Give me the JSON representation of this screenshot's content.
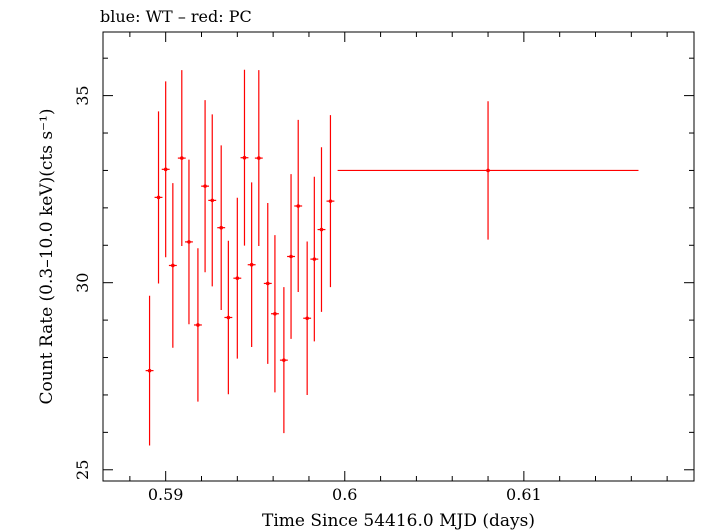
{
  "chart_data": {
    "type": "scatter",
    "title": "blue: WT – red: PC",
    "xlabel": "Time Since 54416.0 MJD (days)",
    "ylabel": "Count Rate (0.3–10.0 keV)(cts s⁻¹)",
    "xlim": [
      0.5865,
      0.6195
    ],
    "ylim": [
      24.7,
      36.7
    ],
    "grid": false,
    "x_ticks": [
      {
        "value": 0.59,
        "label": "0.59"
      },
      {
        "value": 0.6,
        "label": "0.6"
      },
      {
        "value": 0.61,
        "label": "0.61"
      }
    ],
    "y_ticks": [
      {
        "value": 25,
        "label": "25"
      },
      {
        "value": 30,
        "label": "30"
      },
      {
        "value": 35,
        "label": "35"
      }
    ],
    "series": [
      {
        "color": "#ff0000",
        "points": [
          {
            "x": 0.5891,
            "y": 27.65,
            "xerr": 0.00022,
            "yerr": 2.0
          },
          {
            "x": 0.5896,
            "y": 32.28,
            "xerr": 0.00022,
            "yerr": 2.3
          },
          {
            "x": 0.59,
            "y": 33.03,
            "xerr": 0.00022,
            "yerr": 2.35
          },
          {
            "x": 0.5904,
            "y": 30.46,
            "xerr": 0.00022,
            "yerr": 2.2
          },
          {
            "x": 0.5909,
            "y": 33.33,
            "xerr": 0.00022,
            "yerr": 2.35
          },
          {
            "x": 0.5913,
            "y": 31.09,
            "xerr": 0.00022,
            "yerr": 2.2
          },
          {
            "x": 0.5918,
            "y": 28.87,
            "xerr": 0.00022,
            "yerr": 2.05
          },
          {
            "x": 0.5922,
            "y": 32.58,
            "xerr": 0.00022,
            "yerr": 2.3
          },
          {
            "x": 0.5926,
            "y": 32.2,
            "xerr": 0.00022,
            "yerr": 2.3
          },
          {
            "x": 0.5931,
            "y": 31.47,
            "xerr": 0.00022,
            "yerr": 2.2
          },
          {
            "x": 0.5935,
            "y": 29.07,
            "xerr": 0.00022,
            "yerr": 2.05
          },
          {
            "x": 0.594,
            "y": 30.12,
            "xerr": 0.00022,
            "yerr": 2.15
          },
          {
            "x": 0.5944,
            "y": 33.34,
            "xerr": 0.00022,
            "yerr": 2.35
          },
          {
            "x": 0.5948,
            "y": 30.48,
            "xerr": 0.00022,
            "yerr": 2.2
          },
          {
            "x": 0.5952,
            "y": 33.33,
            "xerr": 0.00022,
            "yerr": 2.35
          },
          {
            "x": 0.5957,
            "y": 29.98,
            "xerr": 0.00022,
            "yerr": 2.15
          },
          {
            "x": 0.5961,
            "y": 29.17,
            "xerr": 0.00022,
            "yerr": 2.1
          },
          {
            "x": 0.5966,
            "y": 27.93,
            "xerr": 0.00022,
            "yerr": 1.95
          },
          {
            "x": 0.597,
            "y": 30.7,
            "xerr": 0.00022,
            "yerr": 2.2
          },
          {
            "x": 0.5974,
            "y": 32.05,
            "xerr": 0.00022,
            "yerr": 2.3
          },
          {
            "x": 0.5979,
            "y": 29.05,
            "xerr": 0.00022,
            "yerr": 2.05
          },
          {
            "x": 0.5983,
            "y": 30.63,
            "xerr": 0.00022,
            "yerr": 2.2
          },
          {
            "x": 0.5987,
            "y": 31.42,
            "xerr": 0.00022,
            "yerr": 2.2
          },
          {
            "x": 0.5992,
            "y": 32.18,
            "xerr": 0.00022,
            "yerr": 2.3
          },
          {
            "x": 0.608,
            "y": 33.0,
            "xerr": 0.0084,
            "yerr": 1.85
          }
        ]
      }
    ]
  }
}
